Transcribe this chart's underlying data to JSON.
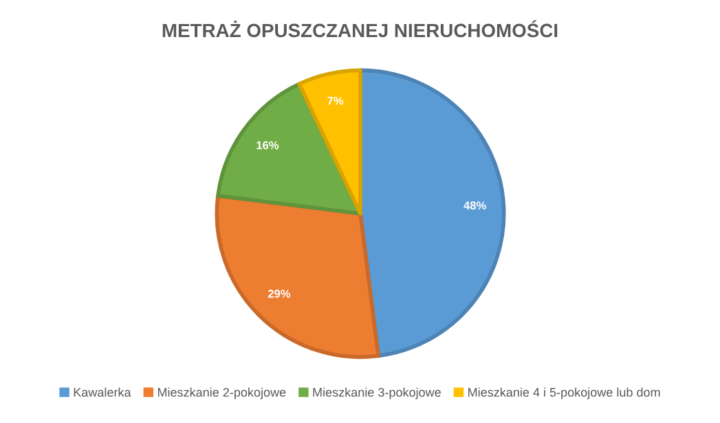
{
  "chart_data": {
    "type": "pie",
    "title": "METRAŻ OPUSZCZANEJ NIERUCHOMOŚCI",
    "categories": [
      "Kawalerka",
      "Mieszkanie 2-pokojowe",
      "Mieszkanie 3-pokojowe",
      "Mieszkanie 4 i 5-pokojowe lub dom"
    ],
    "values": [
      48,
      29,
      16,
      7
    ],
    "colors": [
      "#5b9bd5",
      "#ed7d31",
      "#70ad47",
      "#ffc000"
    ],
    "value_labels": [
      "48%",
      "29%",
      "16%",
      "7%"
    ],
    "legend": "bottom"
  }
}
